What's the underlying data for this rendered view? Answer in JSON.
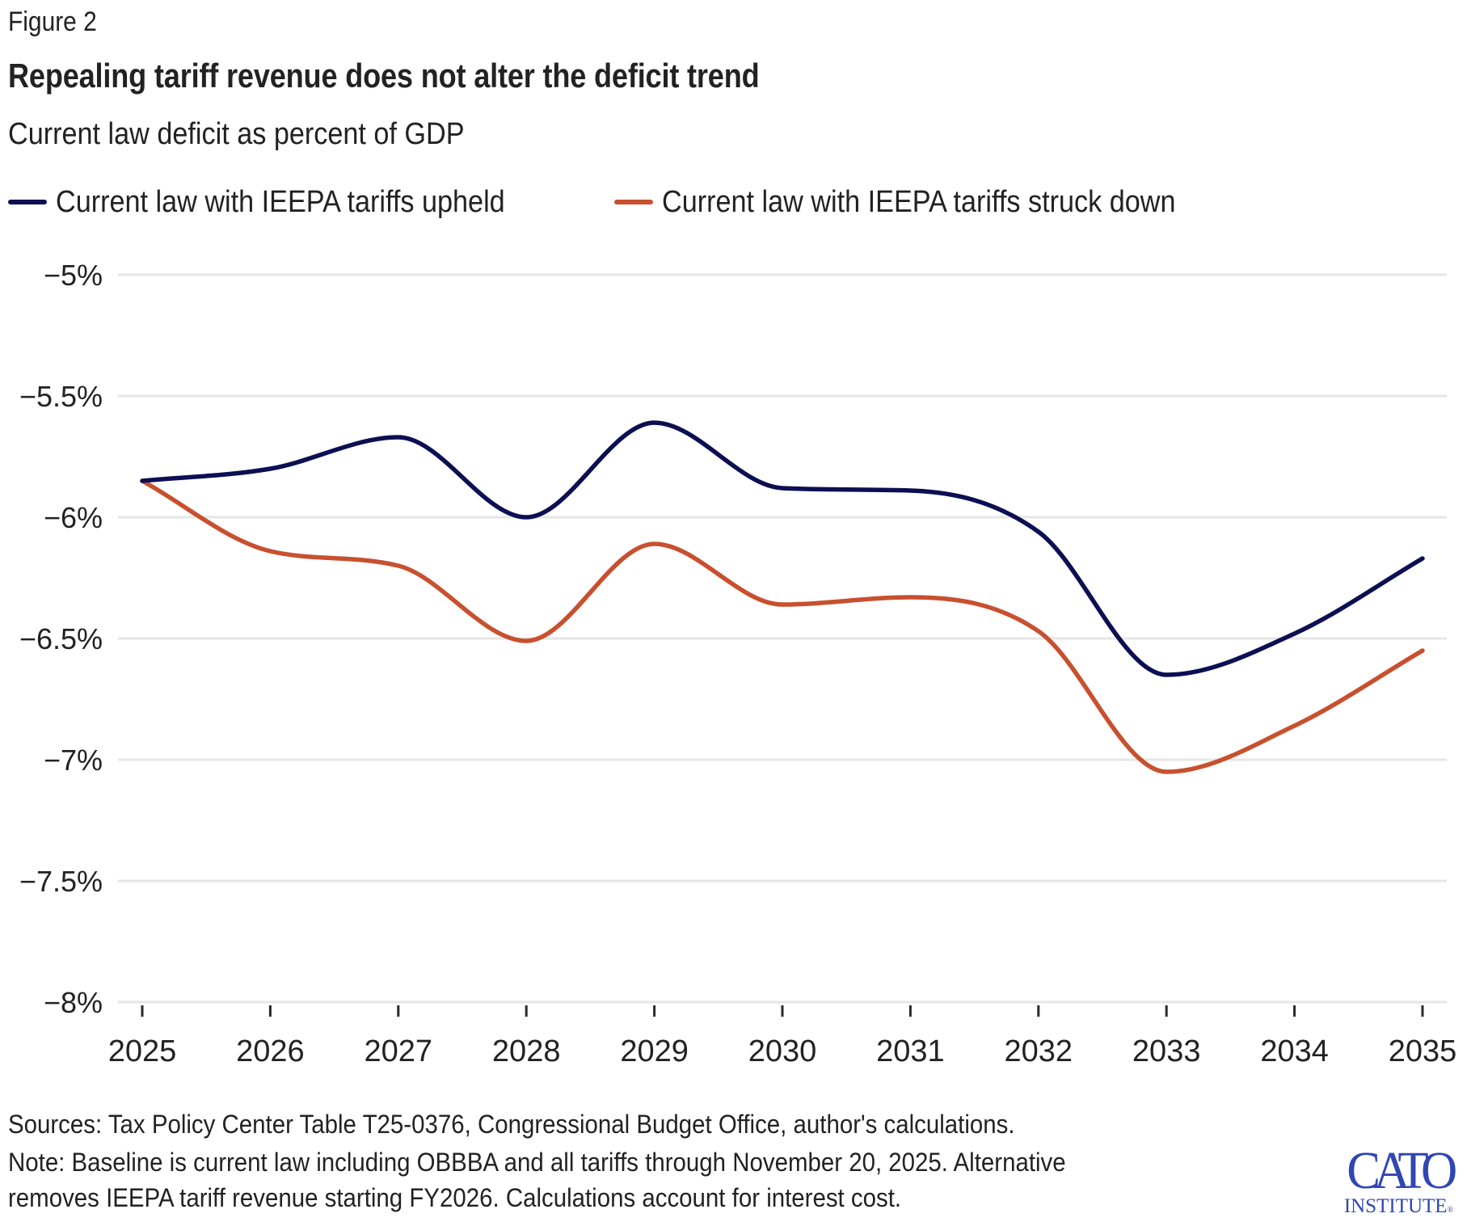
{
  "header": {
    "figure_label": "Figure 2",
    "title": "Repealing tariff revenue does not alter the deficit trend",
    "subtitle": "Current law deficit as percent of GDP"
  },
  "legend": [
    {
      "label": "Current law with IEEPA tariffs upheld",
      "color": "#0c0f52"
    },
    {
      "label": "Current law with IEEPA tariffs struck down",
      "color": "#c8502e"
    }
  ],
  "footer": {
    "sources": "Sources: Tax Policy Center Table T25-0376, Congressional Budget Office, author's calculations.",
    "note_line1": "Note: Baseline is current law including OBBBA and all tariffs through November 20, 2025. Alternative",
    "note_line2": "removes IEEPA tariff revenue starting FY2026. Calculations account for interest cost."
  },
  "logo": {
    "word": "CATO",
    "sub": "INSTITUTE",
    "reg": "®",
    "color": "#2f46b3"
  },
  "chart_data": {
    "type": "line",
    "title": "Repealing tariff revenue does not alter the deficit trend",
    "subtitle": "Current law deficit as percent of GDP",
    "xlabel": "",
    "ylabel": "",
    "x": [
      2025,
      2026,
      2027,
      2028,
      2029,
      2030,
      2031,
      2032,
      2033,
      2034,
      2035
    ],
    "series": [
      {
        "name": "Current law with IEEPA tariffs upheld",
        "color": "#0c0f52",
        "values": [
          -5.85,
          -5.8,
          -5.67,
          -6.0,
          -5.61,
          -5.88,
          -5.89,
          -6.06,
          -6.65,
          -6.48,
          -6.17
        ]
      },
      {
        "name": "Current law with IEEPA tariffs struck down",
        "color": "#c8502e",
        "values": [
          -5.85,
          -6.14,
          -6.2,
          -6.51,
          -6.11,
          -6.36,
          -6.33,
          -6.47,
          -7.05,
          -6.86,
          -6.55
        ]
      }
    ],
    "ylim": [
      -8,
      -5
    ],
    "yticks": [
      -5,
      -5.5,
      -6,
      -6.5,
      -7,
      -7.5,
      -8
    ],
    "ytick_labels": [
      "−5%",
      "−5.5%",
      "−6%",
      "−6.5%",
      "−7%",
      "−7.5%",
      "−8%"
    ],
    "xtick_labels": [
      "2025",
      "2026",
      "2027",
      "2028",
      "2029",
      "2030",
      "2031",
      "2032",
      "2033",
      "2034",
      "2035"
    ],
    "grid": true,
    "legend_position": "top-left",
    "gridline_color": "#e6e6e6",
    "text_color": "#222222"
  }
}
